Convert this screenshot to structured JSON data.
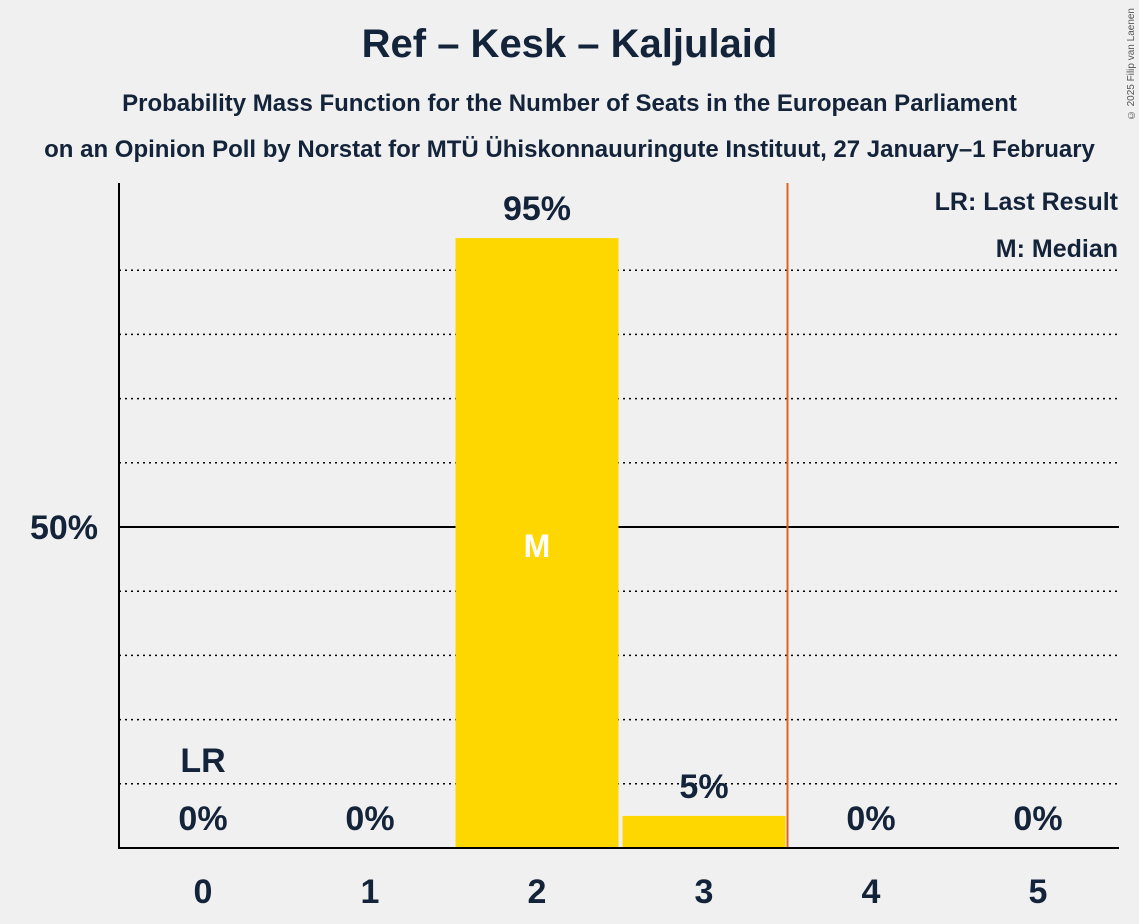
{
  "header": {
    "title": "Ref – Kesk – Kaljulaid",
    "subtitle": "Probability Mass Function for the Number of Seats in the European Parliament",
    "source_line": "on an Opinion Poll by Norstat for MTÜ Ühiskonnauuringute Instituut, 27 January–1 February",
    "copyright": "© 2025 Filip van Laenen"
  },
  "legend": {
    "last_result": "LR: Last Result",
    "median": "M: Median"
  },
  "colors": {
    "bar": "#ffd700",
    "last_result_line": "#e0641e",
    "text": "#13233a",
    "background": "#f0f0f0"
  },
  "chart_data": {
    "type": "bar",
    "categories": [
      "0",
      "1",
      "2",
      "3",
      "4",
      "5"
    ],
    "values": [
      0,
      0,
      95,
      5,
      0,
      0
    ],
    "value_labels": [
      "0%",
      "0%",
      "95%",
      "5%",
      "0%",
      "0%"
    ],
    "ylim": [
      0,
      100
    ],
    "y_ticks": [
      {
        "value": 50,
        "label": "50%"
      }
    ],
    "grid": "dotted every 10%",
    "last_result_seat": 0,
    "last_result_label": "LR",
    "median_seat": 2,
    "median_label": "M",
    "majority_line_after_seat": 3
  }
}
